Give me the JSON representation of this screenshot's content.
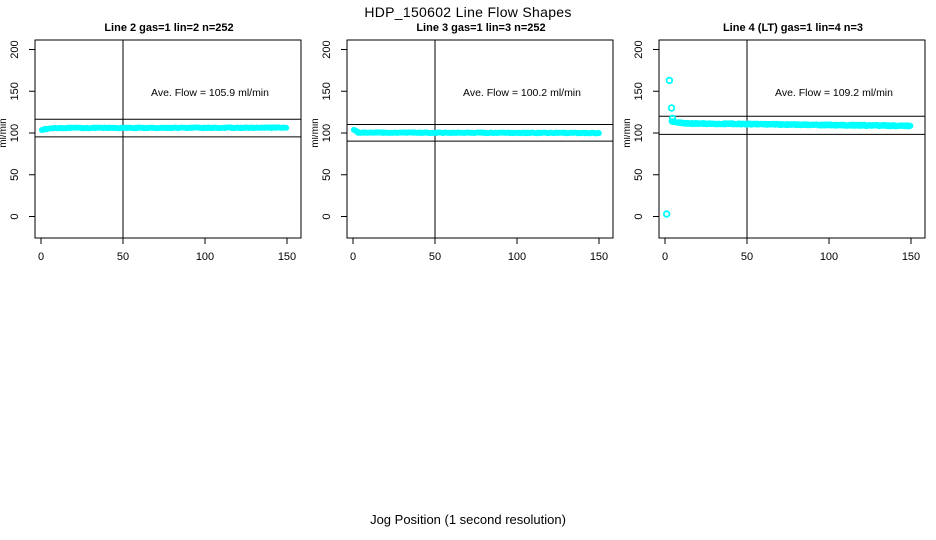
{
  "page": {
    "title": "HDP_150602  Line Flow Shapes",
    "xlabel": "Jog Position (1 second resolution)"
  },
  "colors": {
    "points": "#00FFFF",
    "axis": "#000000",
    "text": "#000000",
    "background": "#FFFFFF"
  },
  "chart_data": [
    {
      "type": "scatter",
      "title": "Line 2 gas=1 lin=2 n=252",
      "annotation": "Ave. Flow =  105.9  ml/min",
      "ave_flow_ml_min": 105.9,
      "n": 252,
      "ylabel": "ml/min",
      "x_ticks": [
        0,
        50,
        100,
        150
      ],
      "y_ticks": [
        0,
        50,
        100,
        150,
        200
      ],
      "xlim": [
        -4,
        156
      ],
      "ylim": [
        -25,
        211
      ],
      "grid": false,
      "ref_lines": {
        "h_upper": 116.5,
        "h_lower": 95.3,
        "v": 50
      },
      "series": {
        "runs": [
          {
            "x0": 0.5,
            "x1": 8,
            "y0": 104.0,
            "y1": 106.0
          },
          {
            "x0": 8,
            "x1": 150,
            "y0": 106.0,
            "y1": 106.3
          }
        ],
        "step": 0.6,
        "jitter": 1.1,
        "passes": 1,
        "outliers": []
      }
    },
    {
      "type": "scatter",
      "title": "Line 3 gas=1 lin=3 n=252",
      "annotation": "Ave. Flow =  100.2  ml/min",
      "ave_flow_ml_min": 100.2,
      "n": 252,
      "ylabel": "ml/min",
      "x_ticks": [
        0,
        50,
        100,
        150
      ],
      "y_ticks": [
        0,
        50,
        100,
        150,
        200
      ],
      "xlim": [
        -4,
        156
      ],
      "ylim": [
        -25,
        211
      ],
      "grid": false,
      "ref_lines": {
        "h_upper": 110.2,
        "h_lower": 90.2,
        "v": 50
      },
      "series": {
        "runs": [
          {
            "x0": 0.5,
            "x1": 3,
            "y0": 104.0,
            "y1": 101.0
          },
          {
            "x0": 3,
            "x1": 150,
            "y0": 100.5,
            "y1": 100.0
          }
        ],
        "step": 0.6,
        "jitter": 1.0,
        "passes": 1,
        "outliers": []
      }
    },
    {
      "type": "scatter",
      "title": "Line 4 (LT) gas=1 lin=4 n=3",
      "annotation": "Ave. Flow =  109.2  ml/min",
      "ave_flow_ml_min": 109.2,
      "n": 3,
      "ylabel": "ml/min",
      "x_ticks": [
        0,
        50,
        100,
        150
      ],
      "y_ticks": [
        0,
        50,
        100,
        150,
        200
      ],
      "xlim": [
        -4,
        156
      ],
      "ylim": [
        -25,
        211
      ],
      "grid": false,
      "ref_lines": {
        "h_upper": 120.1,
        "h_lower": 98.3,
        "v": 50
      },
      "series": {
        "runs": [
          {
            "x0": 4,
            "x1": 12,
            "y0": 114.0,
            "y1": 111.5
          },
          {
            "x0": 12,
            "x1": 150,
            "y0": 111.5,
            "y1": 108.5
          }
        ],
        "step": 0.62,
        "jitter": 1.7,
        "passes": 2,
        "outliers": [
          [
            1.0,
            3.0
          ],
          [
            2.7,
            163.0
          ],
          [
            4.0,
            130.0
          ],
          [
            4.6,
            117.5
          ]
        ]
      }
    }
  ]
}
